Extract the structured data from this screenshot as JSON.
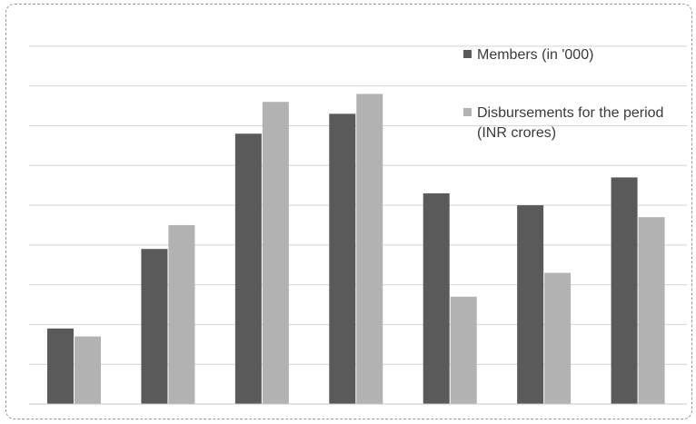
{
  "chart_data": {
    "type": "bar",
    "title": "",
    "xlabel": "",
    "ylabel": "",
    "categories": [
      "",
      "",
      "",
      "",
      "",
      "",
      ""
    ],
    "series": [
      {
        "name": "Members (in '000)",
        "color": "#5a5a5a",
        "values": [
          1.9,
          3.9,
          6.8,
          7.3,
          5.3,
          5.0,
          5.7
        ]
      },
      {
        "name": "Disbursements for the period (INR crores)",
        "color": "#b2b2b2",
        "values": [
          1.7,
          4.5,
          7.6,
          7.8,
          2.7,
          3.3,
          4.7
        ]
      }
    ],
    "ylim": [
      0,
      9.5
    ],
    "grid": true,
    "legend_position": "top-right"
  }
}
